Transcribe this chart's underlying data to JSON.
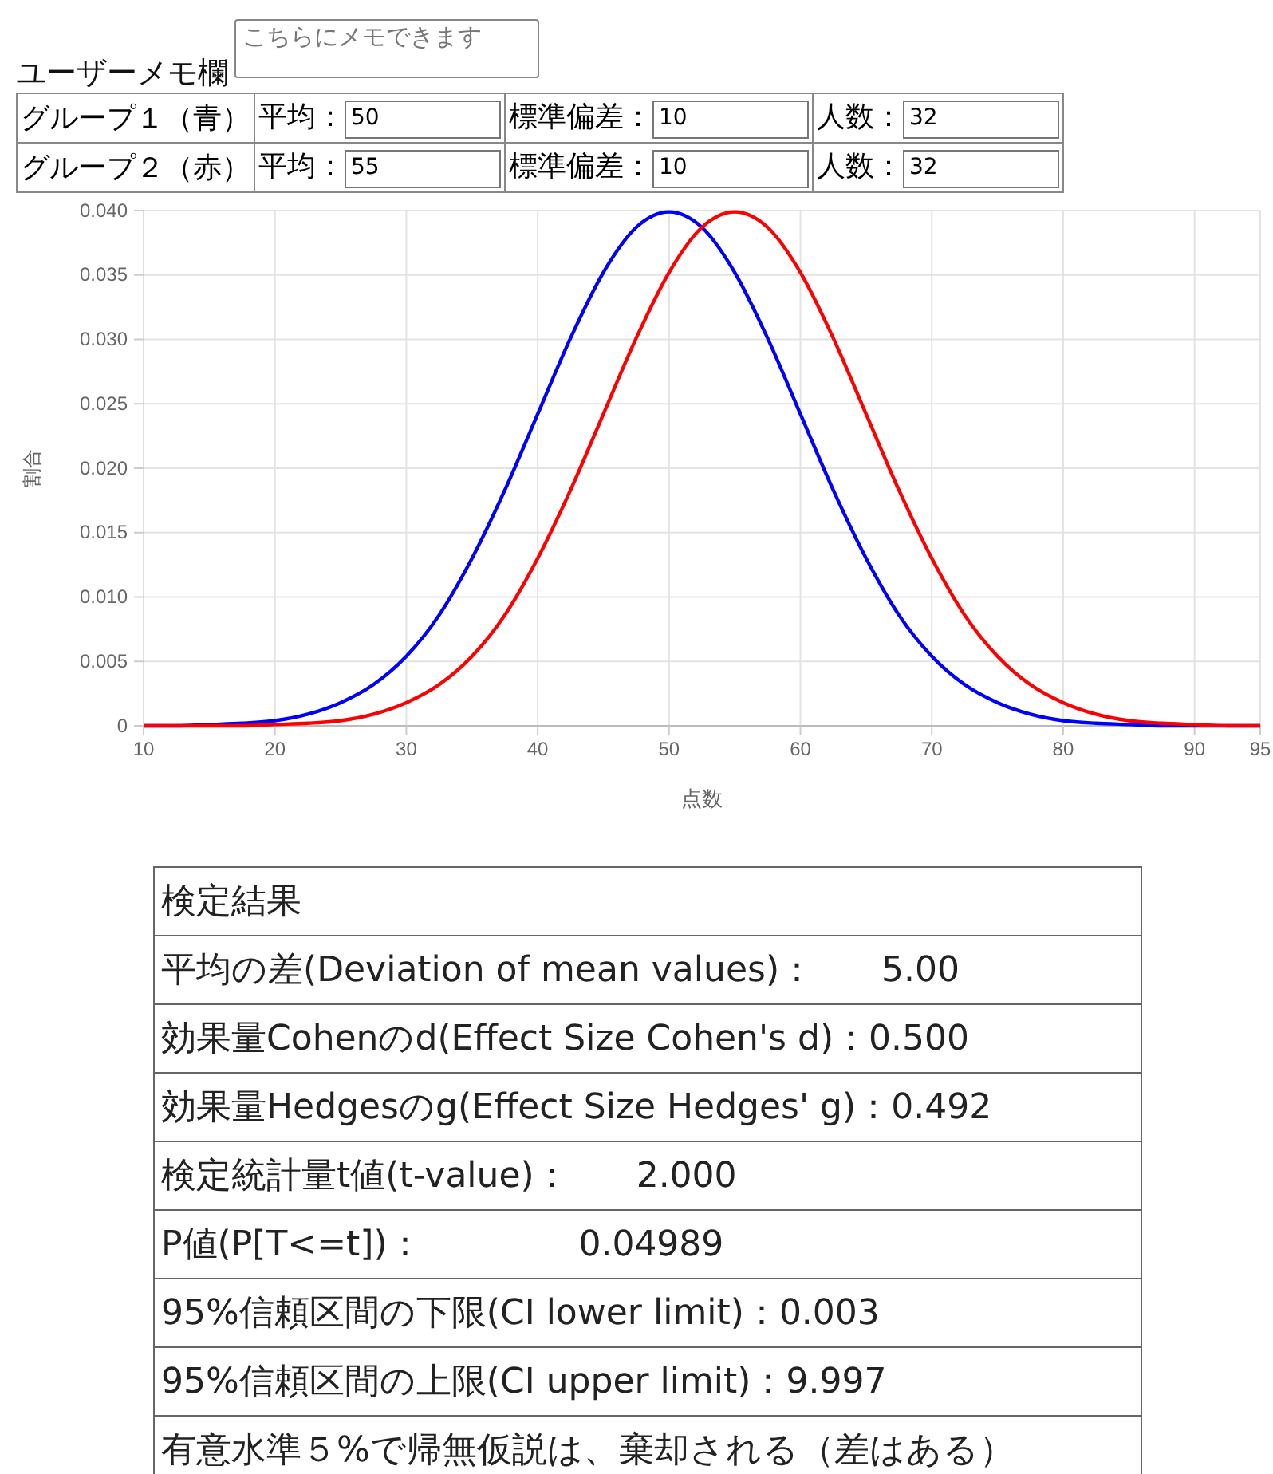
{
  "chart_data": {
    "type": "line",
    "xlabel": "点数",
    "ylabel": "割合",
    "x": [
      10,
      12.5,
      15,
      17.5,
      20,
      22.5,
      25,
      27.5,
      30,
      32.5,
      35,
      37.5,
      40,
      42.5,
      45,
      47.5,
      50,
      52.5,
      55,
      57.5,
      60,
      62.5,
      65,
      67.5,
      70,
      72.5,
      75,
      77.5,
      80,
      82.5,
      85,
      87.5,
      90,
      92.5,
      95
    ],
    "series": [
      {
        "color": "#0000ff",
        "values": [
          0,
          0,
          0.0001,
          0.0002,
          0.0004,
          0.0009,
          0.0018,
          0.0032,
          0.0054,
          0.0086,
          0.013,
          0.0183,
          0.0242,
          0.0301,
          0.0352,
          0.0387,
          0.0399,
          0.0387,
          0.0352,
          0.0301,
          0.0242,
          0.0183,
          0.013,
          0.0086,
          0.0054,
          0.0032,
          0.0018,
          0.0009,
          0.0004,
          0.0002,
          0.0001,
          0,
          0,
          0,
          0
        ]
      },
      {
        "color": "#ff0000",
        "values": [
          0,
          0,
          0,
          0,
          0.0001,
          0.0002,
          0.0004,
          0.0009,
          0.0018,
          0.0032,
          0.0054,
          0.0086,
          0.013,
          0.0183,
          0.0242,
          0.0301,
          0.0352,
          0.0387,
          0.0399,
          0.0387,
          0.0352,
          0.0301,
          0.0242,
          0.0183,
          0.013,
          0.0086,
          0.0054,
          0.0032,
          0.0018,
          0.0009,
          0.0004,
          0.0002,
          0.0001,
          0,
          0
        ]
      }
    ],
    "xlim": [
      10,
      95
    ],
    "xticks": [
      10,
      20,
      30,
      40,
      50,
      60,
      70,
      80,
      90,
      95
    ],
    "ylim": [
      0,
      0.04
    ],
    "yticks": [
      0,
      0.005,
      {
        "value": 0.01,
        "label": "0.010"
      },
      0.015,
      {
        "value": 0.02,
        "label": "0.020"
      },
      0.025,
      {
        "value": 0.03,
        "label": "0.030"
      },
      0.035,
      {
        "value": 0.04,
        "label": "0.040"
      }
    ],
    "grid": true,
    "marker": "none",
    "line_style": "solid",
    "annotations": [
      "ユーザーメモ欄",
      "こちらにメモできます",
      "グループ１（青）",
      "平均：",
      "50",
      "標準偏差：",
      "10",
      "人数：",
      "32",
      "グループ２（赤）",
      "平均：",
      "55",
      "標準偏差：",
      "10",
      "人数：",
      "32",
      "検定結果",
      "平均の差(Deviation of mean values)：      5.00",
      "効果量Cohenのd(Effect Size Cohen's d)：0.500",
      "効果量Hedgesのg(Effect Size Hedges' g)：0.492",
      "検定統計量t値(t-value)：      2.000",
      "P値(P[T<=t])：              0.04989",
      "95%信頼区間の下限(CI lower limit)：0.003",
      "95%信頼区間の上限(CI upper limit)：9.997",
      "有意水準５%で帰無仮説は、棄却される（差はある）"
    ]
  }
}
